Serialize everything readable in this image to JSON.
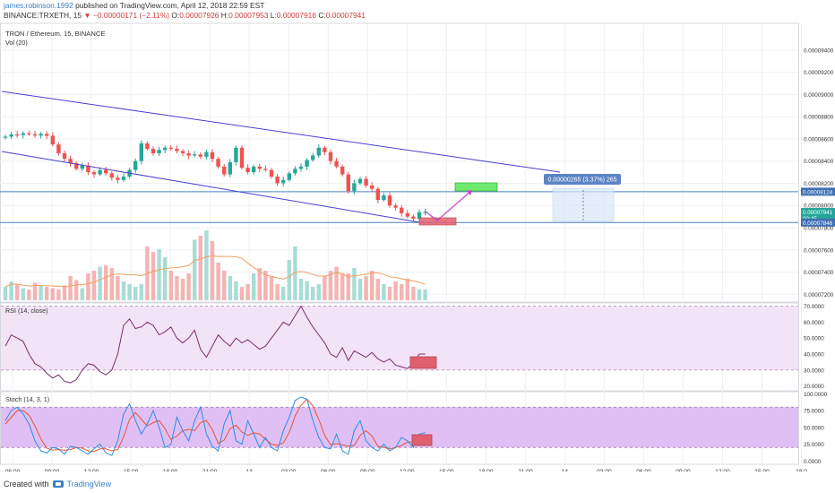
{
  "header": {
    "user": "james.robinson.1992",
    "published_text": " published on TradingView.com, April 12, 2018 22:59 EST",
    "symbol_line": "BINANCE:TRXETH, 15",
    "arrow": "▼",
    "change": "−0.00000171 (−2.11%)",
    "o_label": "O:",
    "o": "0.00007926",
    "h_label": "H:",
    "h": "0.00007953",
    "l_label": "L:",
    "l": "0.00007916",
    "c_label": "C:",
    "c": "0.00007941"
  },
  "footer": {
    "created_with": "Created with",
    "brand": "TradingView"
  },
  "colors": {
    "up": "#26a69a",
    "down": "#ef5350",
    "channel": "#4a3fd1",
    "hline": "#4a7fc4",
    "rsi_line": "#7b2d6e",
    "rsi_bg": "#f3e3f7",
    "stoch_bg": "#e0bff5",
    "stoch_k": "#2a8fe0",
    "stoch_d": "#e8552e",
    "vol_ma": "#f0a060",
    "red_box": "#e06070",
    "green_box": "#6ee86e",
    "arrow": "#c83cc8"
  },
  "chart_data": {
    "type": "candlestick",
    "title": "TRON / Ethereum, 15, BINANCE",
    "volume_label": "Vol (20)",
    "price_axis_labels": [
      "0.00009400",
      "0.00009200",
      "0.00009000",
      "0.00008800",
      "0.00008600",
      "0.00008400",
      "0.00008200",
      "0.00008000",
      "0.00007800",
      "0.00007600",
      "0.00007400",
      "0.00007200"
    ],
    "price_ticks": [
      9400,
      9200,
      9000,
      8800,
      8600,
      8400,
      8200,
      8000,
      7800,
      7600,
      7400,
      7200
    ],
    "ylim": [
      7.17e-05,
      9.52e-05
    ],
    "price_tags": [
      {
        "label": "0.00008124",
        "value": 8124,
        "style": "blue"
      },
      {
        "label": "0.00007941",
        "value": 7941,
        "style": "green"
      },
      {
        "label": "00:45",
        "value": 7885,
        "style": "green"
      },
      {
        "label": "0.00007846",
        "value": 7846,
        "style": "blue"
      }
    ],
    "horizontal_lines": [
      8124,
      7846
    ],
    "measure_label": "0.00000265 (3.37%) 265",
    "time_labels": [
      "06:00",
      "09:00",
      "12:00",
      "15:00",
      "18:00",
      "21:00",
      "13",
      "03:00",
      "06:00",
      "09:00",
      "12:00",
      "15:00",
      "18:00",
      "21:00",
      "14",
      "03:00",
      "06:00",
      "09:00",
      "12:00",
      "15:00",
      "18:0"
    ],
    "closes": [
      8620,
      8640,
      8635,
      8650,
      8642,
      8630,
      8645,
      8628,
      8550,
      8470,
      8420,
      8380,
      8330,
      8360,
      8300,
      8280,
      8320,
      8290,
      8250,
      8230,
      8260,
      8320,
      8400,
      8560,
      8510,
      8470,
      8500,
      8520,
      8510,
      8490,
      8470,
      8450,
      8460,
      8440,
      8480,
      8420,
      8350,
      8280,
      8390,
      8520,
      8340,
      8300,
      8350,
      8330,
      8320,
      8260,
      8200,
      8230,
      8290,
      8330,
      8350,
      8410,
      8450,
      8520,
      8480,
      8400,
      8350,
      8280,
      8130,
      8200,
      8240,
      8180,
      8150,
      8050,
      8090,
      8000,
      7980,
      7930,
      7900,
      7880,
      7940,
      7941
    ],
    "rsi": {
      "label": "RSI (14, close)",
      "axis_labels": [
        "70.0000",
        "60.0000",
        "50.0000",
        "40.0000",
        "30.0000",
        "20.0000"
      ],
      "ticks": [
        70,
        60,
        50,
        40,
        30,
        20
      ],
      "ylim": [
        17,
        72
      ],
      "values": [
        45,
        52,
        50,
        48,
        40,
        34,
        32,
        28,
        25,
        27,
        23,
        22,
        24,
        30,
        34,
        33,
        29,
        27,
        30,
        40,
        58,
        62,
        56,
        57,
        60,
        58,
        52,
        54,
        57,
        50,
        47,
        50,
        55,
        43,
        38,
        45,
        52,
        48,
        45,
        50,
        47,
        49,
        46,
        43,
        45,
        50,
        55,
        60,
        58,
        64,
        70,
        63,
        57,
        52,
        47,
        40,
        38,
        44,
        36,
        42,
        40,
        38,
        41,
        37,
        35,
        37,
        33,
        32,
        31,
        34,
        40,
        40
      ]
    },
    "stoch": {
      "label": "Stoch (14, 3, 1)",
      "axis_labels": [
        "100.0000",
        "75.0000",
        "50.0000",
        "25.0000",
        "0.0000"
      ],
      "ticks": [
        100,
        75,
        50,
        25,
        0
      ],
      "ylim": [
        -5,
        103
      ],
      "k": [
        60,
        75,
        80,
        70,
        55,
        30,
        15,
        12,
        20,
        18,
        10,
        22,
        20,
        15,
        10,
        18,
        25,
        12,
        8,
        30,
        70,
        85,
        60,
        40,
        55,
        75,
        50,
        20,
        25,
        65,
        45,
        30,
        60,
        80,
        40,
        22,
        15,
        55,
        75,
        30,
        25,
        60,
        40,
        20,
        35,
        20,
        15,
        45,
        65,
        90,
        95,
        92,
        60,
        35,
        20,
        18,
        40,
        15,
        10,
        45,
        60,
        30,
        20,
        15,
        25,
        15,
        20,
        35,
        30,
        20,
        40,
        42
      ],
      "d": [
        55,
        65,
        75,
        75,
        68,
        52,
        33,
        19,
        16,
        17,
        16,
        17,
        20,
        19,
        15,
        14,
        18,
        18,
        15,
        17,
        36,
        62,
        72,
        62,
        52,
        57,
        60,
        48,
        32,
        37,
        45,
        47,
        45,
        57,
        60,
        47,
        26,
        31,
        48,
        53,
        43,
        38,
        42,
        40,
        32,
        25,
        23,
        27,
        42,
        67,
        83,
        92,
        82,
        62,
        38,
        24,
        26,
        24,
        22,
        23,
        38,
        45,
        37,
        22,
        20,
        18,
        20,
        23,
        28,
        28,
        30,
        34
      ]
    },
    "volume": [
      10,
      14,
      12,
      9,
      8,
      13,
      11,
      10,
      9,
      8,
      11,
      18,
      15,
      9,
      20,
      22,
      25,
      26,
      24,
      18,
      14,
      12,
      10,
      12,
      40,
      36,
      38,
      32,
      22,
      18,
      16,
      20,
      45,
      48,
      52,
      44,
      28,
      22,
      18,
      14,
      10,
      12,
      20,
      24,
      22,
      18,
      12,
      10,
      30,
      40,
      16,
      14,
      10,
      12,
      18,
      22,
      25,
      20,
      20,
      24,
      16,
      18,
      22,
      16,
      12,
      10,
      14,
      12,
      16,
      10,
      8,
      8
    ]
  }
}
